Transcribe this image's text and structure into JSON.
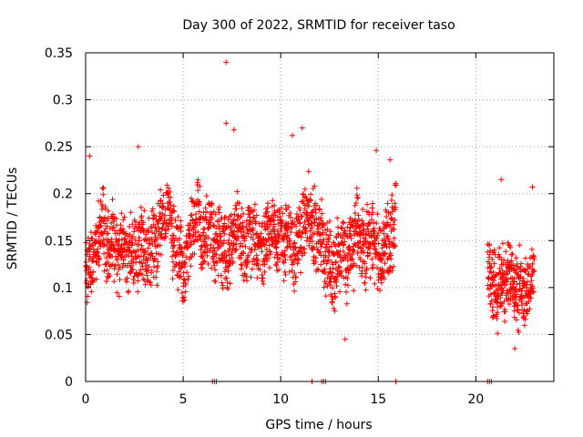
{
  "chart_data": {
    "type": "scatter",
    "title": "Day 300 of 2022, SRMTID for receiver taso",
    "xlabel": "GPS time / hours",
    "ylabel": "SRMTID / TECUs",
    "xlim": [
      0,
      24
    ],
    "ylim": [
      0,
      0.35
    ],
    "x_ticks": [
      0,
      5,
      10,
      15,
      20
    ],
    "x_tick_labels": [
      "0",
      "5",
      "10",
      "15",
      "20"
    ],
    "y_ticks": [
      0,
      0.05,
      0.1,
      0.15,
      0.2,
      0.25,
      0.3,
      0.35
    ],
    "y_tick_labels": [
      "0",
      "0.05",
      "0.1",
      "0.15",
      "0.2",
      "0.25",
      "0.3",
      "0.35"
    ],
    "grid": true,
    "marker": "+",
    "series": [
      {
        "name": "SRMTID",
        "color": "#ff0000",
        "generated": true,
        "segments": [
          {
            "x_start": 0.0,
            "x_end": 16.0,
            "y_low": 0.045,
            "y_high": 0.25,
            "count": 1850
          },
          {
            "x_start": 20.6,
            "x_end": 23.0,
            "y_low": 0.035,
            "y_high": 0.215,
            "count": 310
          }
        ],
        "highlights": [
          {
            "x": 7.2,
            "y": 0.34
          },
          {
            "x": 7.2,
            "y": 0.275
          },
          {
            "x": 7.6,
            "y": 0.268
          },
          {
            "x": 11.1,
            "y": 0.27
          },
          {
            "x": 10.6,
            "y": 0.262
          },
          {
            "x": 0.2,
            "y": 0.24
          },
          {
            "x": 2.7,
            "y": 0.25
          },
          {
            "x": 14.9,
            "y": 0.246
          },
          {
            "x": 15.6,
            "y": 0.236
          },
          {
            "x": 22.9,
            "y": 0.207
          },
          {
            "x": 21.3,
            "y": 0.215
          },
          {
            "x": 13.3,
            "y": 0.045
          },
          {
            "x": 22.0,
            "y": 0.035
          }
        ],
        "zero_points": [
          6.5,
          6.6,
          6.7,
          11.6,
          12.1,
          12.2,
          12.3,
          15.9,
          20.6,
          20.7,
          20.8
        ]
      }
    ]
  }
}
